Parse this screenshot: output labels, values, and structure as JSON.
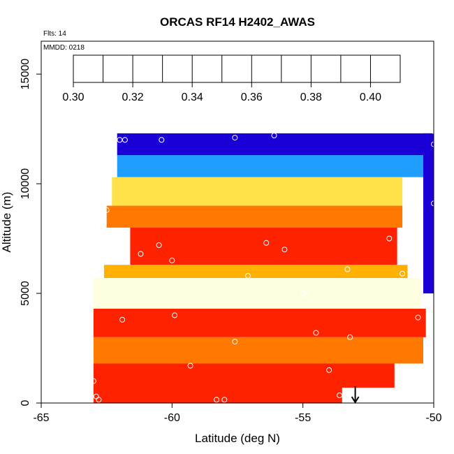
{
  "chart_data": {
    "type": "heatmap",
    "title": "ORCAS RF14 H2402_AWAS",
    "annotations": {
      "flights": "Flts: 14",
      "date": "MMDD: 0218"
    },
    "xlabel": "Latitude (deg N)",
    "ylabel": "Altitude (m)",
    "xlim": [
      -65,
      -50
    ],
    "ylim": [
      0,
      16500
    ],
    "xticks": [
      {
        "value": -65,
        "label": "-65"
      },
      {
        "value": -60,
        "label": "-60"
      },
      {
        "value": -55,
        "label": "-55"
      },
      {
        "value": -50,
        "label": "-50"
      }
    ],
    "yticks": [
      {
        "value": 0,
        "label": "0"
      },
      {
        "value": 5000,
        "label": "5000"
      },
      {
        "value": 10000,
        "label": "10000"
      },
      {
        "value": 15000,
        "label": "15000"
      }
    ],
    "colorbar": {
      "min": 0.3,
      "max": 0.41,
      "step": 0.01,
      "ticks": [
        {
          "value": 0.3,
          "label": "0.30"
        },
        {
          "value": 0.32,
          "label": "0.32"
        },
        {
          "value": 0.34,
          "label": "0.34"
        },
        {
          "value": 0.36,
          "label": "0.36"
        },
        {
          "value": 0.38,
          "label": "0.38"
        },
        {
          "value": 0.4,
          "label": "0.40"
        }
      ],
      "colors": [
        "#7b1fe8",
        "#1a00d6",
        "#0033ff",
        "#1f9eff",
        "#a8e0ff",
        "#fdfde0",
        "#ffe24a",
        "#ffb000",
        "#ff7800",
        "#ff2200",
        "#b01818"
      ]
    },
    "regions": [
      {
        "lat": [
          -62.1,
          -50.0
        ],
        "alt": [
          11300,
          12300
        ],
        "value": 0.318
      },
      {
        "lat": [
          -62.1,
          -50.0
        ],
        "alt": [
          10300,
          11300
        ],
        "value": 0.335
      },
      {
        "lat": [
          -62.3,
          -51.2
        ],
        "alt": [
          9000,
          10300
        ],
        "value": 0.362
      },
      {
        "lat": [
          -62.5,
          -51.2
        ],
        "alt": [
          8000,
          9000
        ],
        "value": 0.38
      },
      {
        "lat": [
          -61.6,
          -51.4
        ],
        "alt": [
          6300,
          8000
        ],
        "value": 0.398
      },
      {
        "lat": [
          -62.6,
          -51.0
        ],
        "alt": [
          5700,
          6300
        ],
        "value": 0.375
      },
      {
        "lat": [
          -63.0,
          -50.5
        ],
        "alt": [
          4300,
          5700
        ],
        "value": 0.356
      },
      {
        "lat": [
          -63.0,
          -50.3
        ],
        "alt": [
          3000,
          4300
        ],
        "value": 0.393
      },
      {
        "lat": [
          -63.0,
          -50.4
        ],
        "alt": [
          1800,
          3000
        ],
        "value": 0.384
      },
      {
        "lat": [
          -63.0,
          -51.5
        ],
        "alt": [
          700,
          1800
        ],
        "value": 0.398
      },
      {
        "lat": [
          -63.0,
          -53.5
        ],
        "alt": [
          0,
          700
        ],
        "value": 0.392
      },
      {
        "lat": [
          -50.4,
          -50.0
        ],
        "alt": [
          5000,
          12300
        ],
        "value": 0.318
      }
    ],
    "flight_points": [
      {
        "lat": -62.0,
        "alt": 12000
      },
      {
        "lat": -61.8,
        "alt": 12000
      },
      {
        "lat": -60.4,
        "alt": 12000
      },
      {
        "lat": -57.6,
        "alt": 12100
      },
      {
        "lat": -56.1,
        "alt": 12200
      },
      {
        "lat": -50.0,
        "alt": 12400
      },
      {
        "lat": -50.0,
        "alt": 11800
      },
      {
        "lat": -50.0,
        "alt": 9100
      },
      {
        "lat": -62.5,
        "alt": 8800
      },
      {
        "lat": -60.5,
        "alt": 7200
      },
      {
        "lat": -61.2,
        "alt": 6800
      },
      {
        "lat": -60.0,
        "alt": 6500
      },
      {
        "lat": -56.4,
        "alt": 7300
      },
      {
        "lat": -55.7,
        "alt": 7000
      },
      {
        "lat": -51.7,
        "alt": 7500
      },
      {
        "lat": -57.1,
        "alt": 5800
      },
      {
        "lat": -53.3,
        "alt": 6100
      },
      {
        "lat": -51.2,
        "alt": 5900
      },
      {
        "lat": -55.0,
        "alt": 5000
      },
      {
        "lat": -59.9,
        "alt": 4000
      },
      {
        "lat": -61.9,
        "alt": 3800
      },
      {
        "lat": -50.6,
        "alt": 3900
      },
      {
        "lat": -54.5,
        "alt": 3200
      },
      {
        "lat": -53.2,
        "alt": 3000
      },
      {
        "lat": -57.6,
        "alt": 2800
      },
      {
        "lat": -59.3,
        "alt": 1700
      },
      {
        "lat": -54.0,
        "alt": 1500
      },
      {
        "lat": -50.0,
        "alt": 2200
      },
      {
        "lat": -63.0,
        "alt": 1000
      },
      {
        "lat": -62.9,
        "alt": 300
      },
      {
        "lat": -62.8,
        "alt": 150
      },
      {
        "lat": -58.3,
        "alt": 150
      },
      {
        "lat": -58.0,
        "alt": 150
      },
      {
        "lat": -53.6,
        "alt": 350
      },
      {
        "lat": -53.4,
        "alt": 350
      }
    ],
    "marker": {
      "lat": -53.0,
      "alt": 700
    }
  }
}
